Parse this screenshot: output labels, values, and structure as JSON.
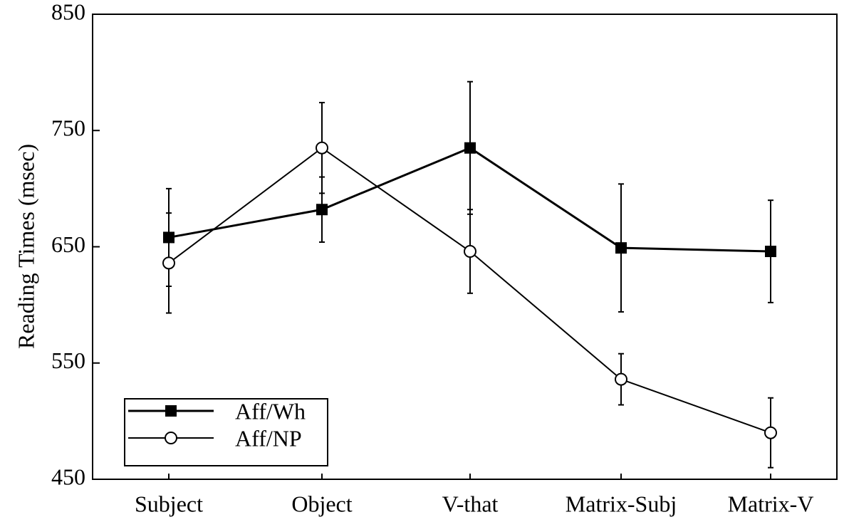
{
  "chart_data": {
    "type": "line",
    "y_label": "Reading Times (msec)",
    "categories": [
      "Subject",
      "Object",
      "V-that",
      "Matrix-Subj",
      "Matrix-V"
    ],
    "series": [
      {
        "name": "Aff/Wh",
        "color": "#000000",
        "marker": "square",
        "values": [
          658,
          682,
          735,
          649,
          646
        ],
        "errors": [
          42,
          28,
          57,
          55,
          44
        ]
      },
      {
        "name": "Aff/NP",
        "color": "#000000",
        "marker": "circle",
        "values": [
          636,
          735,
          646,
          536,
          490
        ],
        "errors": [
          43,
          39,
          36,
          22,
          30
        ]
      }
    ],
    "ylim": [
      450,
      850
    ],
    "yticks": [
      450,
      550,
      650,
      750,
      850
    ],
    "legend": "lower-left"
  }
}
